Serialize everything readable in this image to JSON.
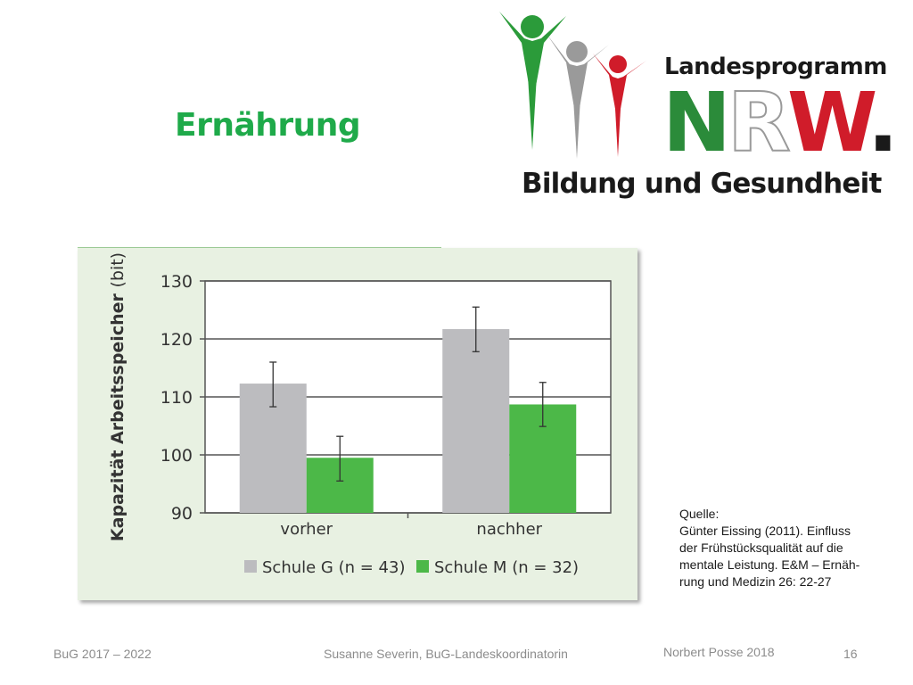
{
  "slide": {
    "title": "Ernährung"
  },
  "logo": {
    "line1": "Landesprogramm",
    "nrw_n": "N",
    "nrw_r": "R",
    "nrw_w": "W",
    "nrw_dot": ".",
    "line3": "Bildung und Gesundheit",
    "figure_colors": [
      "#2b9b3a",
      "#9a9a9a",
      "#d01c2a"
    ]
  },
  "source": {
    "lines": [
      "Quelle:",
      "Günter Eissing (2011). Einfluss",
      "der Frühstücksqualität auf die",
      "mentale Leistung. E&M – Ernäh-",
      "rung und Medizin 26: 22-27"
    ]
  },
  "footer": {
    "left": "BuG 2017 – 2022",
    "middle": "Susanne Severin, BuG-Landeskoordinatorin",
    "credit": "Norbert Posse 2018",
    "page": "16"
  },
  "chart_data": {
    "type": "bar",
    "title": "",
    "ylabel": "Kapazität Arbeitsspeicher (bit)",
    "ylabel_main": "Kapazität Arbeitsspeicher",
    "ylabel_unit": "(bit)",
    "xlabel": "",
    "categories": [
      "vorher",
      "nachher"
    ],
    "ylim": [
      90,
      130
    ],
    "yticks": [
      90,
      100,
      110,
      120,
      130
    ],
    "grid": true,
    "legend_position": "bottom",
    "series": [
      {
        "name": "Schule G (n = 43)",
        "color": "#bcbcbf",
        "values": [
          112.3,
          121.7
        ],
        "error_low": [
          108.3,
          117.8
        ],
        "error_high": [
          116.0,
          125.5
        ]
      },
      {
        "name": "Schule M (n = 32)",
        "color": "#4cb848",
        "values": [
          99.5,
          108.7
        ],
        "error_low": [
          95.5,
          104.9
        ],
        "error_high": [
          103.2,
          112.5
        ]
      }
    ]
  }
}
